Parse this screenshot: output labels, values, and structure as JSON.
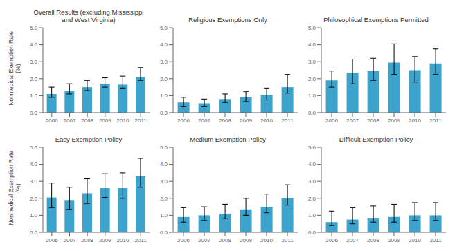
{
  "chart_data": [
    {
      "type": "bar",
      "title": "Overall Results (excluding Mississippi\nand West Virginia)",
      "y_label": "Nonmedical Exemption Rate\n(%)",
      "categories": [
        "2006",
        "2007",
        "2008",
        "2009",
        "2010",
        "2011"
      ],
      "values": [
        1.1,
        1.3,
        1.5,
        1.7,
        1.65,
        2.1
      ],
      "err_low": [
        0.2,
        0.2,
        0.2,
        0.2,
        0.2,
        0.2
      ],
      "err_high": [
        0.4,
        0.4,
        0.4,
        0.35,
        0.5,
        0.55
      ],
      "color": "#3CA4CC",
      "ylim": [
        0,
        5.0
      ],
      "yticks": [
        {
          "value": 0,
          "label": "0.0"
        },
        {
          "value": 1,
          "label": "1.0"
        },
        {
          "value": 2,
          "label": "2.0"
        },
        {
          "value": 3,
          "label": "3.0"
        },
        {
          "value": 4,
          "label": "4.0"
        },
        {
          "value": 5,
          "label": "5.0"
        }
      ]
    },
    {
      "type": "bar",
      "title": "Religious Exemptions Only",
      "categories": [
        "2006",
        "2007",
        "2008",
        "2009",
        "2010",
        "2011"
      ],
      "values": [
        0.6,
        0.55,
        0.8,
        0.9,
        1.05,
        1.5
      ],
      "err_low": [
        0.25,
        0.2,
        0.2,
        0.25,
        0.3,
        0.35
      ],
      "err_high": [
        0.3,
        0.25,
        0.3,
        0.35,
        0.4,
        0.75
      ],
      "color": "#3CA4CC",
      "ylim": [
        0,
        5.0
      ],
      "yticks": [
        {
          "value": 0,
          "label": "0.0"
        },
        {
          "value": 1,
          "label": "1.0"
        },
        {
          "value": 2,
          "label": "2.0"
        },
        {
          "value": 3,
          "label": "3.0"
        },
        {
          "value": 4,
          "label": "4.0"
        },
        {
          "value": 5,
          "label": "5.0"
        }
      ]
    },
    {
      "type": "bar",
      "title": "Philosophical Exemptions Permitted",
      "categories": [
        "2006",
        "2007",
        "2008",
        "2009",
        "2010",
        "2011"
      ],
      "values": [
        1.9,
        2.35,
        2.45,
        2.95,
        2.5,
        2.9
      ],
      "err_low": [
        0.4,
        0.65,
        0.55,
        0.7,
        0.7,
        0.65
      ],
      "err_high": [
        0.55,
        0.8,
        0.75,
        1.1,
        0.8,
        0.85
      ],
      "color": "#3CA4CC",
      "ylim": [
        0,
        5.0
      ],
      "yticks": [
        {
          "value": 0,
          "label": "0.0"
        },
        {
          "value": 1,
          "label": "1.0"
        },
        {
          "value": 2,
          "label": "2.0"
        },
        {
          "value": 3,
          "label": "3.0"
        },
        {
          "value": 4,
          "label": "4.0"
        },
        {
          "value": 5,
          "label": "5.0"
        }
      ]
    },
    {
      "type": "bar",
      "title": "Easy Exemption Policy",
      "y_label": "Nonmedical Exemption Rate\n(%)",
      "categories": [
        "2006",
        "2007",
        "2008",
        "2009",
        "2010",
        "2011"
      ],
      "values": [
        2.05,
        1.9,
        2.3,
        2.6,
        2.6,
        3.3
      ],
      "err_low": [
        0.6,
        0.55,
        0.6,
        0.55,
        0.6,
        0.65
      ],
      "err_high": [
        0.85,
        0.75,
        0.85,
        0.85,
        0.9,
        1.05
      ],
      "color": "#3CA4CC",
      "ylim": [
        0,
        5.0
      ],
      "yticks": [
        {
          "value": 0,
          "label": "0.0"
        },
        {
          "value": 1,
          "label": "1.0"
        },
        {
          "value": 2,
          "label": "2.0"
        },
        {
          "value": 3,
          "label": "3.0"
        },
        {
          "value": 4,
          "label": "4.0"
        },
        {
          "value": 5,
          "label": "5.0"
        }
      ]
    },
    {
      "type": "bar",
      "title": "Medium Exemption Policy",
      "categories": [
        "2006",
        "2007",
        "2008",
        "2009",
        "2010",
        "2011"
      ],
      "values": [
        0.9,
        1.0,
        1.1,
        1.35,
        1.5,
        2.0
      ],
      "err_low": [
        0.3,
        0.3,
        0.3,
        0.35,
        0.35,
        0.4
      ],
      "err_high": [
        0.55,
        0.5,
        0.55,
        0.65,
        0.75,
        0.8
      ],
      "color": "#3CA4CC",
      "ylim": [
        0,
        5.0
      ],
      "yticks": [
        {
          "value": 0,
          "label": "0.0"
        },
        {
          "value": 1,
          "label": "1.0"
        },
        {
          "value": 2,
          "label": "2.0"
        },
        {
          "value": 3,
          "label": "3.0"
        },
        {
          "value": 4,
          "label": "4.0"
        },
        {
          "value": 5,
          "label": "5.0"
        }
      ]
    },
    {
      "type": "bar",
      "title": "Difficult Exemption Policy",
      "categories": [
        "2006",
        "2007",
        "2008",
        "2009",
        "2010",
        "2011"
      ],
      "values": [
        0.6,
        0.75,
        0.85,
        0.9,
        1.0,
        1.0
      ],
      "err_low": [
        0.2,
        0.25,
        0.25,
        0.3,
        0.3,
        0.3
      ],
      "err_high": [
        0.65,
        0.7,
        0.7,
        0.75,
        0.75,
        0.75
      ],
      "color": "#3CA4CC",
      "ylim": [
        0,
        5.0
      ],
      "yticks": [
        {
          "value": 0,
          "label": "0.0"
        },
        {
          "value": 1,
          "label": "1.0"
        },
        {
          "value": 2,
          "label": "2.0"
        },
        {
          "value": 3,
          "label": "3.0"
        },
        {
          "value": 4,
          "label": "4.0"
        },
        {
          "value": 5,
          "label": "5.0"
        }
      ]
    }
  ]
}
